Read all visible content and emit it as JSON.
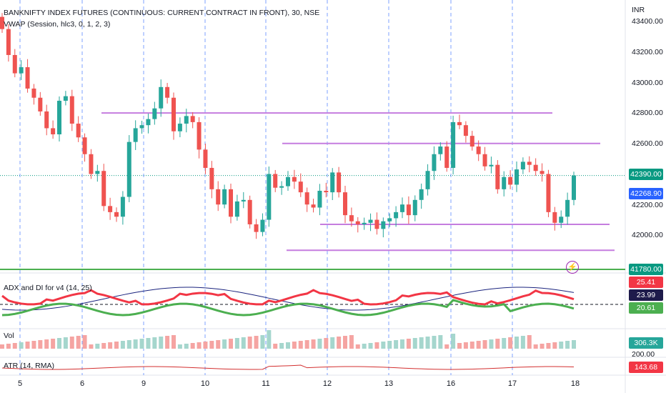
{
  "main": {
    "symbol_title": "BANKNIFTY INDEX FUTURES (CONTINUOUS: CURRENT CONTRACT IN FRONT), 30, NSE",
    "vwap_label": "VWAP (Session, hlc3, 0, 1, 2, 3)",
    "currency": "INR",
    "price_ticks": [
      "43400.00",
      "43200.00",
      "43000.00",
      "42800.00",
      "42600.00",
      "42200.00",
      "42000.00"
    ],
    "price_badges": [
      {
        "text": "42390.00",
        "color": "#089981"
      },
      {
        "text": "42268.90",
        "color": "#2962ff"
      },
      {
        "text": "41780.00",
        "color": "#089981"
      }
    ]
  },
  "adx_panel": {
    "label": "ADX and DI for v4 (14, 25)",
    "badges": [
      {
        "text": "25.41",
        "color": "#f23645"
      },
      {
        "text": "23.99",
        "color": "#1e1b4b"
      },
      {
        "text": "20.61",
        "color": "#4caf50"
      }
    ]
  },
  "vol_panel": {
    "label": "Vol",
    "badge": "306.3K",
    "tick": "200.00"
  },
  "atr_panel": {
    "label": "ATR (14, RMA)",
    "badge": "143.68"
  },
  "x_axis": {
    "labels": [
      "5",
      "6",
      "9",
      "10",
      "11",
      "12",
      "13",
      "16",
      "17",
      "18"
    ]
  },
  "colors": {
    "up": "#26a69a",
    "down": "#ef5350",
    "level": "#c57ddf",
    "support": "#4caf50",
    "session_sep": "#2962ff"
  },
  "icons": {
    "flash": "lightning-icon"
  },
  "chart_data": {
    "type": "candlestick",
    "ylim": [
      41780,
      43440
    ],
    "opens": [
      43430,
      43350,
      43180,
      43060,
      43100,
      42960,
      42900,
      42810,
      42700,
      42660,
      42880,
      42910,
      42730,
      42640,
      42530,
      42400,
      42420,
      42190,
      42150,
      42120,
      42250,
      42610,
      42700,
      42720,
      42760,
      42830,
      42970,
      42900,
      42680,
      42730,
      42780,
      42740,
      42560,
      42440,
      42300,
      42200,
      42300,
      42120,
      42220,
      42230,
      42070,
      42020,
      42100,
      42400,
      42310,
      42320,
      42380,
      42350,
      42280,
      42200,
      42180,
      42290,
      42280,
      42410,
      42280,
      42130,
      42090,
      42070,
      42080,
      42100,
      42040,
      42090,
      42110,
      42150,
      42200,
      42130,
      42230,
      42300,
      42420,
      42530,
      42580,
      42440,
      42740,
      42720,
      42650,
      42580,
      42530,
      42450,
      42460,
      42300,
      42380,
      42330,
      42430,
      42480,
      42460,
      42420,
      42400,
      42150,
      42080,
      42120,
      42230
    ],
    "closes": [
      43350,
      43180,
      43060,
      43100,
      42960,
      42900,
      42810,
      42700,
      42660,
      42880,
      42910,
      42730,
      42640,
      42530,
      42400,
      42420,
      42190,
      42150,
      42120,
      42250,
      42610,
      42700,
      42720,
      42760,
      42830,
      42970,
      42900,
      42680,
      42730,
      42780,
      42740,
      42560,
      42440,
      42300,
      42200,
      42300,
      42120,
      42220,
      42230,
      42070,
      42020,
      42100,
      42400,
      42310,
      42320,
      42380,
      42350,
      42280,
      42200,
      42180,
      42290,
      42280,
      42410,
      42280,
      42130,
      42090,
      42070,
      42080,
      42100,
      42040,
      42090,
      42110,
      42150,
      42200,
      42130,
      42230,
      42300,
      42420,
      42530,
      42580,
      42440,
      42740,
      42720,
      42650,
      42580,
      42530,
      42450,
      42460,
      42300,
      42380,
      42330,
      42430,
      42480,
      42460,
      42420,
      42400,
      42150,
      42080,
      42120,
      42230,
      42390
    ]
  }
}
